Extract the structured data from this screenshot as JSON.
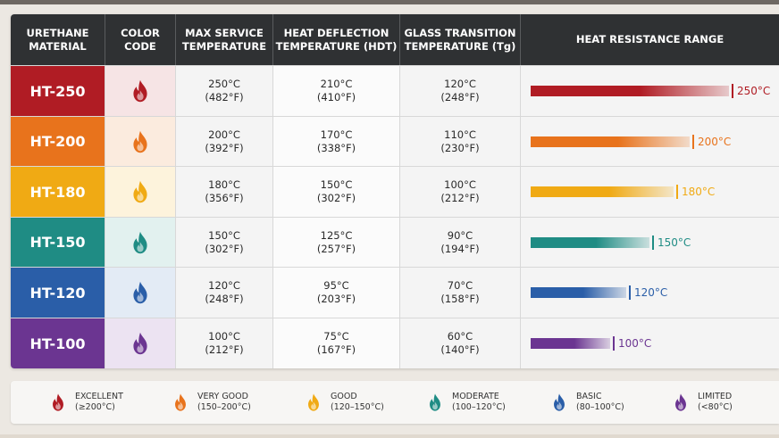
{
  "colors": {
    "header_bg": "#2f3133",
    "ht250": "#b01c24",
    "ht200": "#e8731c",
    "ht180": "#f0aa14",
    "ht150": "#1f8c84",
    "ht120": "#2a5ea8",
    "ht100": "#6b3591"
  },
  "header": {
    "material": "URETHANE\nMATERIAL",
    "color_code": "COLOR\nCODE",
    "max_service": "MAX SERVICE\nTEMPERATURE",
    "hdt": "HEAT DEFLECTION\nTEMPERATURE (HDT)",
    "tg": "GLASS TRANSITION\nTEMPERATURE (Tg)",
    "range": "HEAT RESISTANCE RANGE"
  },
  "rows": [
    {
      "material": "HT-250",
      "icon": "flame-icon",
      "color": "#b01c24",
      "tint": "#f6e4e5",
      "max_service": "250°C\n(482°F)",
      "hdt": "210°C\n(410°F)",
      "tg": "120°C\n(248°F)",
      "range_value": 250,
      "range_label": "250°C"
    },
    {
      "material": "HT-200",
      "icon": "flame-icon",
      "color": "#e8731c",
      "tint": "#fbebde",
      "max_service": "200°C\n(392°F)",
      "hdt": "170°C\n(338°F)",
      "tg": "110°C\n(230°F)",
      "range_value": 200,
      "range_label": "200°C"
    },
    {
      "material": "HT-180",
      "icon": "flame-icon",
      "color": "#f0aa14",
      "tint": "#fdf3dc",
      "max_service": "180°C\n(356°F)",
      "hdt": "150°C\n(302°F)",
      "tg": "100°C\n(212°F)",
      "range_value": 180,
      "range_label": "180°C"
    },
    {
      "material": "HT-150",
      "icon": "flame-icon",
      "color": "#1f8c84",
      "tint": "#e2f1ef",
      "max_service": "150°C\n(302°F)",
      "hdt": "125°C\n(257°F)",
      "tg": "90°C\n(194°F)",
      "range_value": 150,
      "range_label": "150°C"
    },
    {
      "material": "HT-120",
      "icon": "flame-icon",
      "color": "#2a5ea8",
      "tint": "#e3ebf5",
      "max_service": "120°C\n(248°F)",
      "hdt": "95°C\n(203°F)",
      "tg": "70°C\n(158°F)",
      "range_value": 120,
      "range_label": "120°C"
    },
    {
      "material": "HT-100",
      "icon": "flame-icon",
      "color": "#6b3591",
      "tint": "#ece3f2",
      "max_service": "100°C\n(212°F)",
      "hdt": "75°C\n(167°F)",
      "tg": "60°C\n(140°F)",
      "range_value": 100,
      "range_label": "100°C"
    }
  ],
  "legend": [
    {
      "icon": "flame-icon",
      "color": "#b01c24",
      "label": "EXCELLENT",
      "range": "(≥200°C)"
    },
    {
      "icon": "flame-icon",
      "color": "#e8731c",
      "label": "VERY GOOD",
      "range": "(150–200°C)"
    },
    {
      "icon": "flame-icon",
      "color": "#f0aa14",
      "label": "GOOD",
      "range": "(120–150°C)"
    },
    {
      "icon": "flame-icon",
      "color": "#1f8c84",
      "label": "MODERATE",
      "range": "(100–120°C)"
    },
    {
      "icon": "flame-icon",
      "color": "#2a5ea8",
      "label": "BASIC",
      "range": "(80–100°C)"
    },
    {
      "icon": "flame-icon",
      "color": "#6b3591",
      "label": "LIMITED",
      "range": "(<80°C)"
    }
  ]
}
